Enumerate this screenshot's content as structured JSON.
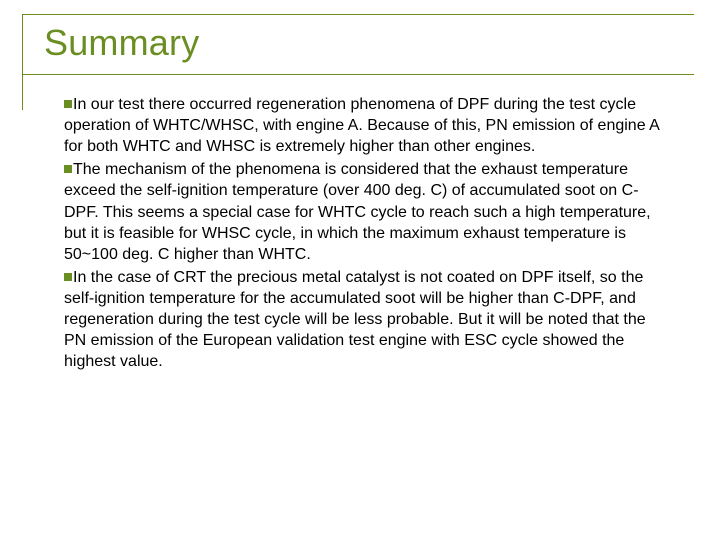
{
  "title": "Summary",
  "accent_color": "#6b8e23",
  "text_color": "#000000",
  "background_color": "#ffffff",
  "title_fontsize": 36,
  "body_fontsize": 16,
  "bullets": [
    "In our test there occurred regeneration phenomena of DPF during the test cycle operation of WHTC/WHSC, with engine A. Because of this, PN emission of engine A for both WHTC and WHSC is  extremely higher than other engines.",
    "The mechanism of the phenomena is considered that the exhaust temperature exceed the self-ignition temperature (over 400 deg. C) of accumulated soot on C-DPF. This seems a special case for WHTC cycle to reach such a high temperature, but it is feasible for WHSC cycle, in which the maximum exhaust temperature is 50~100 deg. C higher than WHTC.",
    "In the case of CRT the precious metal catalyst is not coated on DPF itself, so the self-ignition temperature for the accumulated soot will be higher than C-DPF, and regeneration during the test cycle will be less probable. But it will be noted that the PN emission of the European validation test engine with ESC cycle showed the highest value."
  ]
}
